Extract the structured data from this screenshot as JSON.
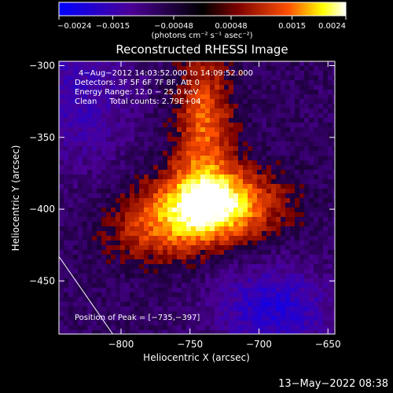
{
  "chart_data": {
    "type": "heatmap",
    "title": "Reconstructed RHESSI Image",
    "xlabel": "Heliocentric X (arcsec)",
    "ylabel": "Heliocentric Y (arcsec)",
    "xlim": [
      -845,
      -645
    ],
    "ylim": [
      -487,
      -297
    ],
    "x_ticks": [
      -800,
      -750,
      -700,
      -650
    ],
    "x_tick_labels": [
      "−800",
      "−750",
      "−700",
      "−650"
    ],
    "y_ticks": [
      -300,
      -350,
      -400,
      -450
    ],
    "y_tick_labels": [
      "−300",
      "−350",
      "−400",
      "−450"
    ],
    "colorbar": {
      "range": [
        -0.0024,
        0.0024
      ],
      "ticks": [
        -0.0024,
        -0.0015,
        -0.00048,
        0.00048,
        0.0015,
        0.0024
      ],
      "tick_labels": [
        "−0.0024",
        "−0.0015",
        "−0.00048",
        "0.00048",
        "0.0015",
        "0.0024"
      ],
      "label": "(photons cm⁻² s⁻¹ asec⁻²)",
      "colormap": [
        "#0000ff",
        "#4b0096",
        "#000000",
        "#7a0000",
        "#ff5000",
        "#ffff00",
        "#ffffff"
      ]
    },
    "annotations": [
      "4−Aug−2012 14:03:52.000 to 14:09:52.000",
      "Detectors: 3F 5F 6F 7F 8F, Att 0",
      "Energy Range: 12.0 − 25.0 keV",
      "Clean     Total counts: 2.79E+04"
    ],
    "peak": {
      "x": -735,
      "y": -397,
      "label": "Position of Peak = [−735,−397]"
    },
    "limb_line": [
      [
        -845,
        -433
      ],
      [
        -806,
        -487
      ]
    ]
  },
  "footer": {
    "timestamp": "13−May−2022 08:38"
  }
}
